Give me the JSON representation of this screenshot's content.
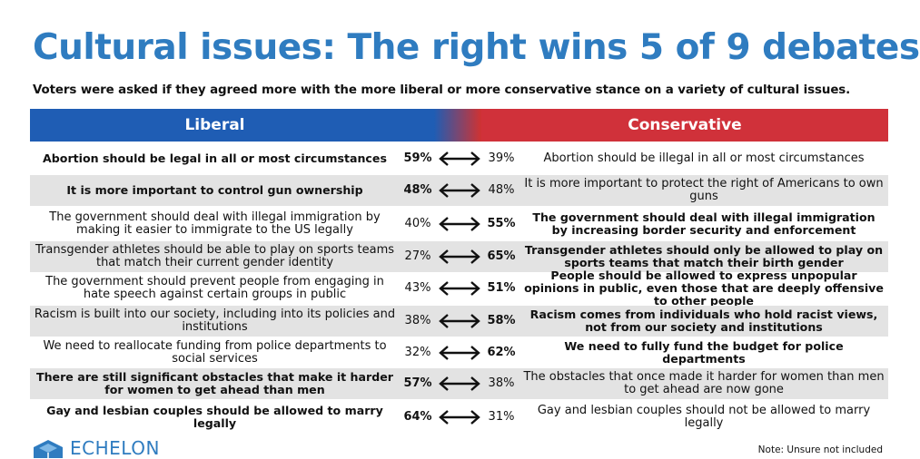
{
  "title": "Cultural issues: The right wins 5 of 9 debates",
  "subtitle": "Voters were asked if they agreed more with the more liberal or more conservative stance on a variety of cultural issues.",
  "colors": {
    "title": "#2f7cc0",
    "liberal": "#1f5db4",
    "conservative": "#d0313a",
    "shade": "#e3e3e3"
  },
  "headers": {
    "liberal": "Liberal",
    "conservative": "Conservative"
  },
  "chart_data": {
    "type": "table",
    "columns": [
      "Liberal",
      "Conservative"
    ],
    "rows": [
      {
        "liberal": "Abortion should be legal in all or most circumstances",
        "liberal_pct": "59%",
        "conservative_pct": "39%",
        "conservative": "Abortion should be illegal in all or most circumstances",
        "winner": "liberal"
      },
      {
        "liberal": "It is more important to control gun ownership",
        "liberal_pct": "48%",
        "conservative_pct": "48%",
        "conservative": "It is more important to protect the right of Americans to own guns",
        "winner": "liberal"
      },
      {
        "liberal": "The government should deal with illegal immigration by making it easier to immigrate to the US legally",
        "liberal_pct": "40%",
        "conservative_pct": "55%",
        "conservative": "The government should deal with illegal immigration by increasing border security and enforcement",
        "winner": "conservative"
      },
      {
        "liberal": "Transgender athletes should be able to play on sports teams that match their current gender identity",
        "liberal_pct": "27%",
        "conservative_pct": "65%",
        "conservative": "Transgender athletes should only be allowed to play on sports teams that match their birth gender",
        "winner": "conservative"
      },
      {
        "liberal": "The government should prevent people from engaging in hate speech against certain groups in public",
        "liberal_pct": "43%",
        "conservative_pct": "51%",
        "conservative": "People should be allowed to express unpopular opinions in public, even those that are deeply offensive to other people",
        "winner": "conservative"
      },
      {
        "liberal": "Racism is built into our society, including into its policies and institutions",
        "liberal_pct": "38%",
        "conservative_pct": "58%",
        "conservative": "Racism comes from individuals who hold racist views, not from our society and institutions",
        "winner": "conservative"
      },
      {
        "liberal": "We need to reallocate funding from police departments to social services",
        "liberal_pct": "32%",
        "conservative_pct": "62%",
        "conservative": "We need to fully fund the budget for police departments",
        "winner": "conservative"
      },
      {
        "liberal": "There are still significant obstacles that make it harder for women to get ahead than men",
        "liberal_pct": "57%",
        "conservative_pct": "38%",
        "conservative": "The obstacles that once made it harder for women than men to get ahead are now gone",
        "winner": "liberal"
      },
      {
        "liberal": "Gay and lesbian couples should be allowed to marry legally",
        "liberal_pct": "64%",
        "conservative_pct": "31%",
        "conservative": "Gay and lesbian couples should not be allowed to marry legally",
        "winner": "liberal"
      }
    ]
  },
  "logo": {
    "text": "ECHELON",
    "icon": "hexagon-logo-icon"
  },
  "note": "Note: Unsure not included"
}
